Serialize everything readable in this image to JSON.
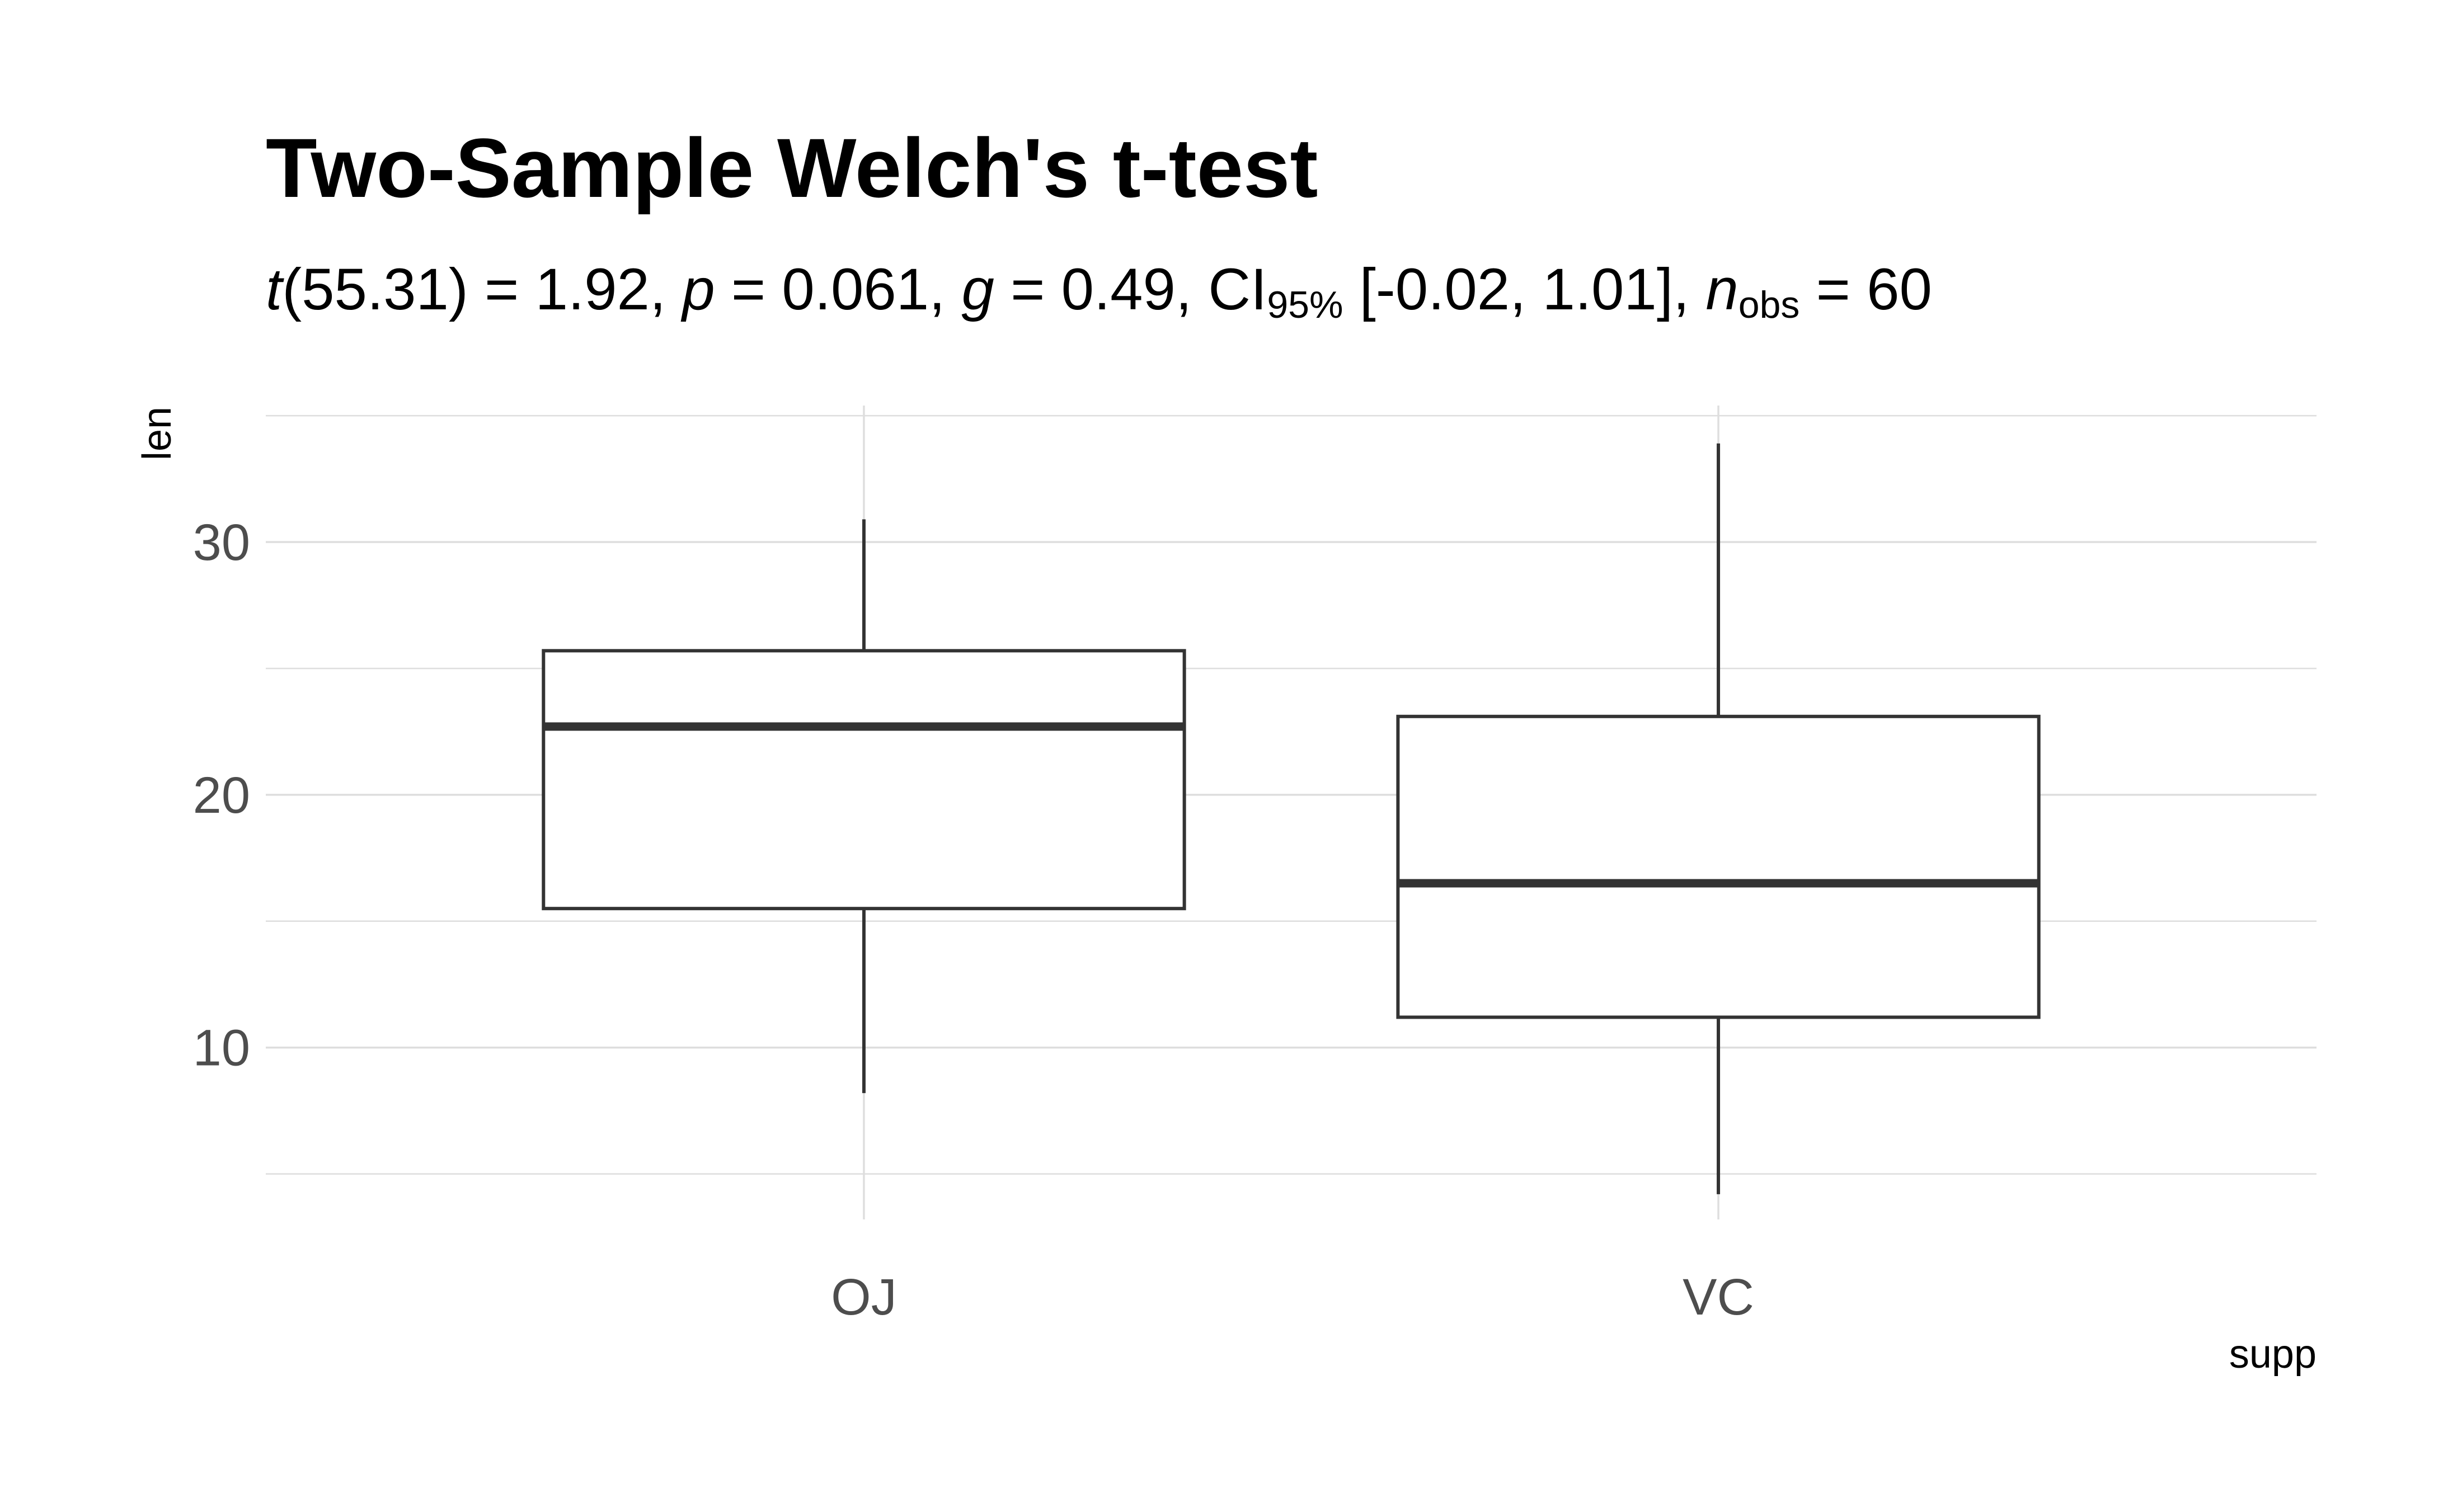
{
  "chart_data": {
    "type": "box",
    "title": "Two-Sample Welch's t-test",
    "subtitle": {
      "t_df": "55.31",
      "t_value": "1.92",
      "p": "0.061",
      "g": "0.49",
      "ci_level": "95%",
      "ci": "[-0.02, 1.01]",
      "n_obs": "60"
    },
    "xlabel": "supp",
    "ylabel": "len",
    "ylim": [
      3.2,
      35.4
    ],
    "y_ticks": [
      10,
      20,
      30
    ],
    "y_minor_ticks": [
      5,
      15,
      25,
      35
    ],
    "grid": true,
    "categories": [
      "OJ",
      "VC"
    ],
    "boxes": [
      {
        "category": "OJ",
        "min": 8.2,
        "q1": 15.5,
        "median": 22.7,
        "q3": 25.7,
        "max": 30.9
      },
      {
        "category": "VC",
        "min": 4.2,
        "q1": 11.2,
        "median": 16.5,
        "q3": 23.1,
        "max": 33.9
      }
    ],
    "colors": {
      "box_stroke": "#333333",
      "grid": "#dedede",
      "tick_text": "#4d4d4d",
      "text": "#000000"
    }
  }
}
